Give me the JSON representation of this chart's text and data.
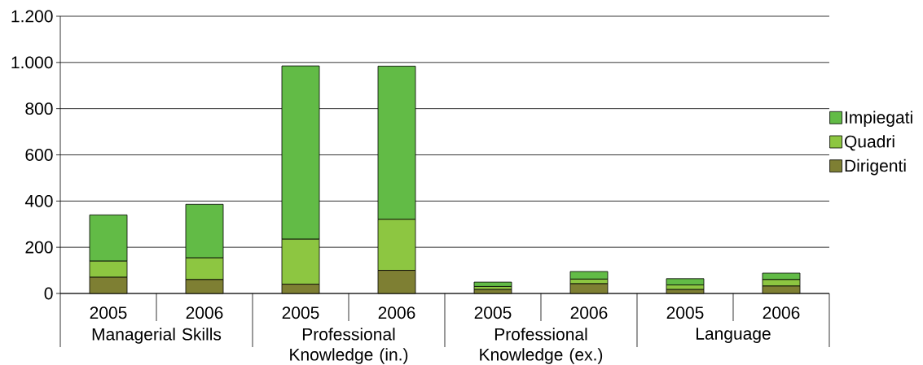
{
  "chart_data": {
    "type": "bar",
    "stacked": true,
    "categories": [
      "2005",
      "2006",
      "2005",
      "2006",
      "2005",
      "2006",
      "2005",
      "2006"
    ],
    "annotations": [
      "Managerial Skills",
      "Professional Knowledge (in.)",
      "Professional Knowledge (ex.)",
      "Language"
    ],
    "series": [
      {
        "name": "Dirigenti",
        "color": "#7e7f33",
        "values": [
          70,
          60,
          40,
          100,
          17,
          42,
          17,
          32
        ]
      },
      {
        "name": "Quadri",
        "color": "#8dc641",
        "values": [
          70,
          94,
          195,
          221,
          13,
          20,
          20,
          28
        ]
      },
      {
        "name": "Impiegati",
        "color": "#62bb46",
        "values": [
          200,
          232,
          750,
          663,
          19,
          33,
          27,
          28
        ]
      }
    ],
    "ylim": [
      0,
      1200
    ],
    "yticks": [
      0,
      200,
      400,
      600,
      800,
      {
        "value": 1000,
        "label": "1.000"
      },
      {
        "value": 1200,
        "label": "1.200"
      }
    ],
    "grid": "y",
    "legend": "right"
  }
}
